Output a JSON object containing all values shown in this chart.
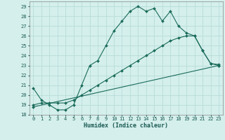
{
  "xlabel": "Humidex (Indice chaleur)",
  "background_color": "#d4efec",
  "grid_color": "#b8ddd9",
  "line_color": "#1a6b5a",
  "xlim": [
    -0.5,
    23.5
  ],
  "ylim": [
    18,
    29.5
  ],
  "yticks": [
    18,
    19,
    20,
    21,
    22,
    23,
    24,
    25,
    26,
    27,
    28,
    29
  ],
  "xticks": [
    0,
    1,
    2,
    3,
    4,
    5,
    6,
    7,
    8,
    9,
    10,
    11,
    12,
    13,
    14,
    15,
    16,
    17,
    18,
    19,
    20,
    21,
    22,
    23
  ],
  "line1_x": [
    0,
    1,
    2,
    3,
    4,
    5,
    6,
    7,
    8,
    9,
    10,
    11,
    12,
    13,
    14,
    15,
    16,
    17,
    18,
    19,
    20,
    21,
    22,
    23
  ],
  "line1_y": [
    20.7,
    19.5,
    19.0,
    18.5,
    18.5,
    19.0,
    21.0,
    23.0,
    23.5,
    25.0,
    26.5,
    27.5,
    28.5,
    29.0,
    28.5,
    28.8,
    27.5,
    28.5,
    27.0,
    26.3,
    26.0,
    24.5,
    23.2,
    23.1
  ],
  "line2_x": [
    0,
    1,
    2,
    3,
    4,
    5,
    6,
    7,
    8,
    9,
    10,
    11,
    12,
    13,
    14,
    15,
    16,
    17,
    18,
    19,
    20,
    21,
    22,
    23
  ],
  "line2_y": [
    19.0,
    19.2,
    19.2,
    19.2,
    19.2,
    19.5,
    20.0,
    20.5,
    21.0,
    21.5,
    22.0,
    22.5,
    23.0,
    23.5,
    24.0,
    24.5,
    25.0,
    25.5,
    25.8,
    26.0,
    26.0,
    24.5,
    23.2,
    23.0
  ],
  "line3_x": [
    0,
    23
  ],
  "line3_y": [
    18.8,
    23.0
  ],
  "tick_fontsize": 5.0,
  "xlabel_fontsize": 6.0
}
